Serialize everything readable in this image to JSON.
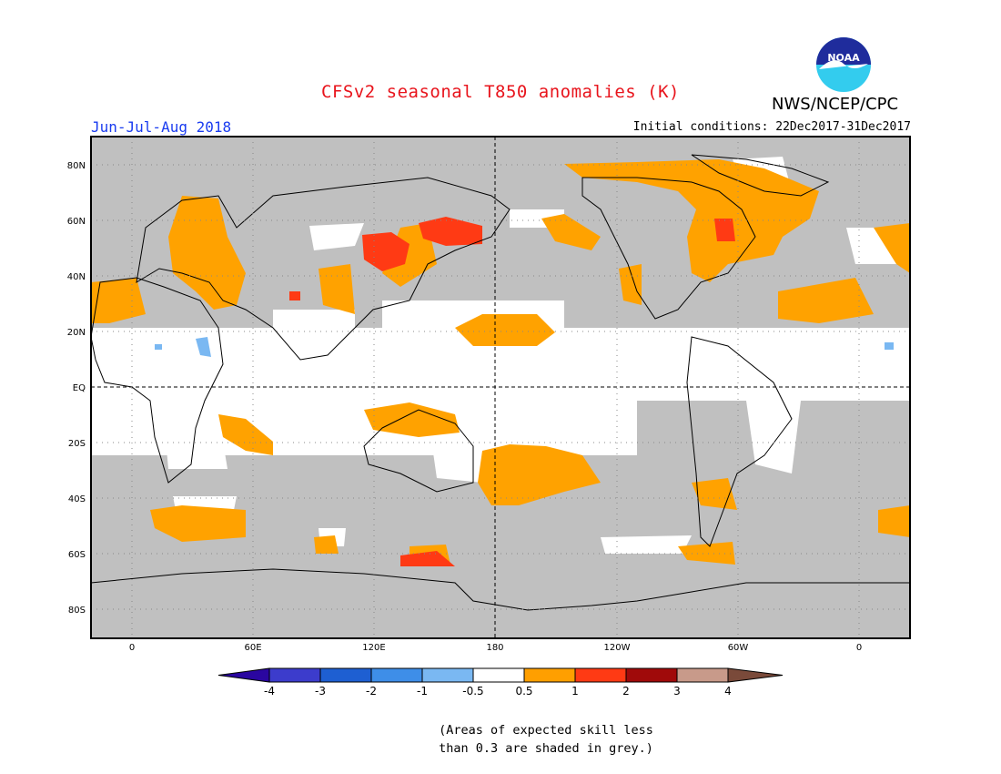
{
  "title": "CFSv2 seasonal T850 anomalies (K)",
  "organization": "NWS/NCEP/CPC",
  "logo_text": "NOAA",
  "season": "Jun-Jul-Aug 2018",
  "initial_conditions": "Initial conditions: 22Dec2017-31Dec2017",
  "lat_labels": [
    "80N",
    "60N",
    "40N",
    "20N",
    "EQ",
    "20S",
    "40S",
    "60S",
    "80S"
  ],
  "lon_labels": [
    "0",
    "60E",
    "120E",
    "180",
    "120W",
    "60W",
    "0"
  ],
  "colorbar": {
    "labels": [
      "-4",
      "-3",
      "-2",
      "-1",
      "-0.5",
      "0.5",
      "1",
      "2",
      "3",
      "4"
    ],
    "colors": [
      "#2a06a0",
      "#3c3ccc",
      "#1e5fd2",
      "#3e8ee8",
      "#7ab8f2",
      "#ffffff",
      "#ff9f00",
      "#ff3a14",
      "#a00a0a",
      "#c89a8a",
      "#7a4a3a"
    ]
  },
  "legend_note": [
    "(Areas of expected skill less",
    "than 0.3 are shaded in grey.)"
  ],
  "colors": {
    "land_grey": "#c0c0c0",
    "anomaly_05_1": "#ffa200",
    "anomaly_1_2": "#ff3a14",
    "title_red": "#e8141c",
    "season_blue": "#1a3cf0"
  }
}
